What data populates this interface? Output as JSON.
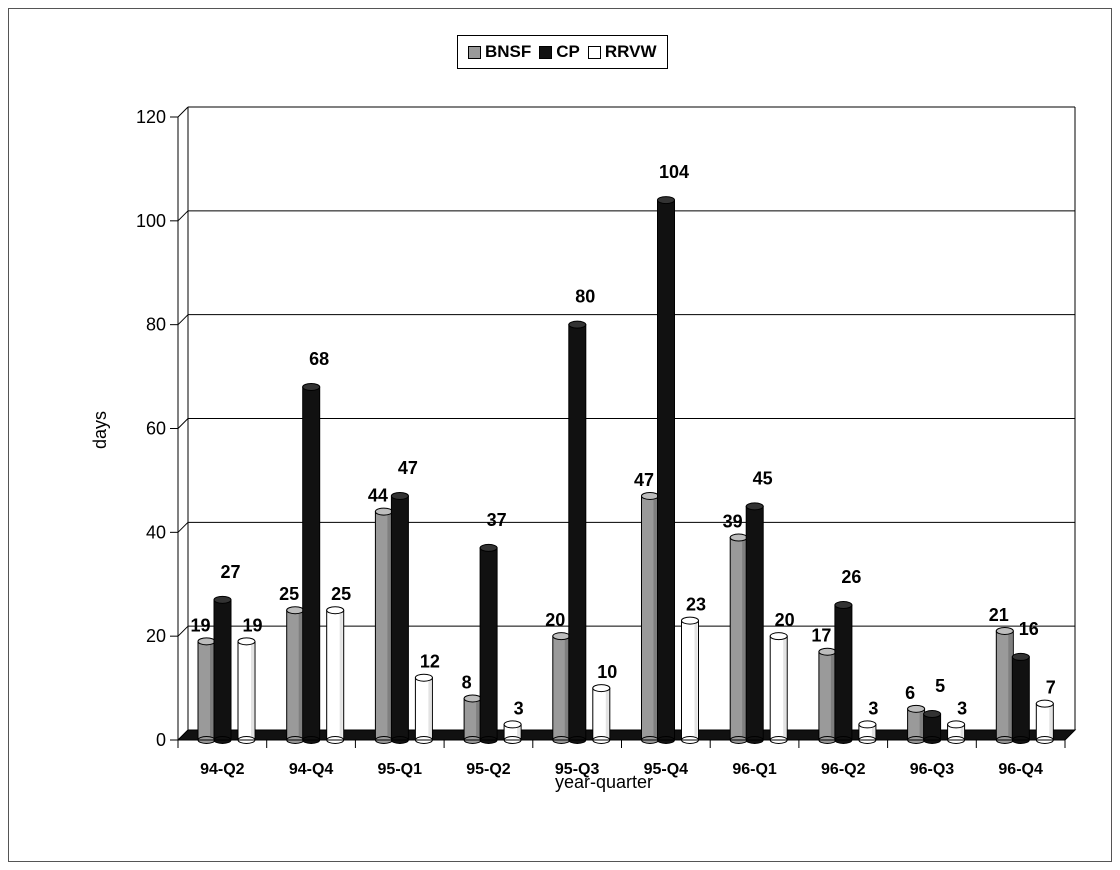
{
  "chart_data": {
    "type": "bar",
    "title": "",
    "xlabel": "year-quarter",
    "ylabel": "days",
    "ylim": [
      0,
      120
    ],
    "yticks": [
      0,
      20,
      40,
      60,
      80,
      100,
      120
    ],
    "grid": true,
    "legend_position": "top-center",
    "categories": [
      "94-Q2",
      "94-Q4",
      "95-Q1",
      "95-Q2",
      "95-Q3",
      "95-Q4",
      "96-Q1",
      "96-Q2",
      "96-Q3",
      "96-Q4"
    ],
    "series": [
      {
        "name": "BNSF",
        "color": "#9a9a9a",
        "values": [
          19,
          25,
          44,
          8,
          20,
          47,
          39,
          17,
          6,
          21
        ]
      },
      {
        "name": "CP",
        "color": "#111111",
        "values": [
          27,
          68,
          47,
          37,
          80,
          104,
          45,
          26,
          5,
          16
        ]
      },
      {
        "name": "RRVW",
        "color": "#ffffff",
        "values": [
          19,
          25,
          12,
          3,
          10,
          23,
          20,
          3,
          3,
          7
        ]
      }
    ]
  }
}
